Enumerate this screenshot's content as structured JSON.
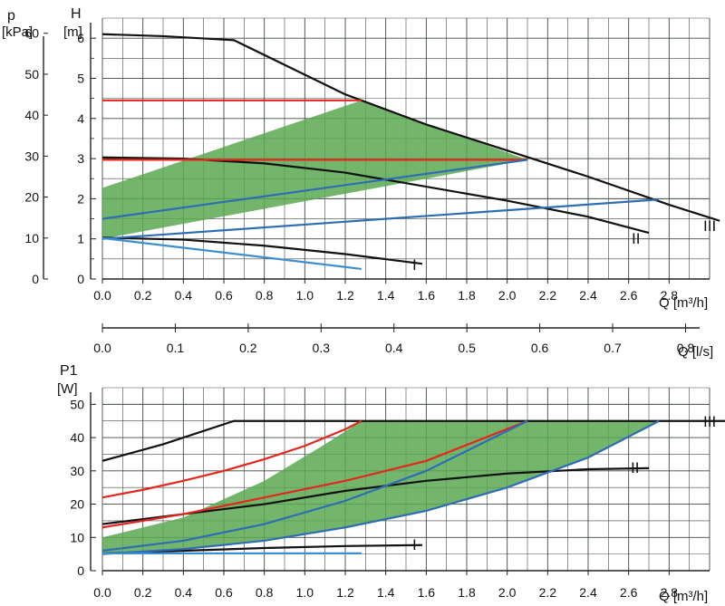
{
  "colors": {
    "grid": "#3e4a3e",
    "black": "#111111",
    "red": "#e5261e",
    "blue": "#2e6db5",
    "lightblue": "#3b8ed0",
    "green": "#5aa850"
  },
  "chart_data": [
    {
      "type": "line",
      "xlabel": "Q [m³/h]",
      "ylabel_left": "H\n[m]",
      "ylabel_outer": "p\n[kPa]",
      "x_ticks": [
        "0.0",
        "0.2",
        "0.4",
        "0.6",
        "0.8",
        "1.0",
        "1.2",
        "1.4",
        "1.6",
        "1.8",
        "2.0",
        "2.2",
        "2.4",
        "2.6",
        "2.8"
      ],
      "xlim": [
        0,
        3.0
      ],
      "ylim": [
        0,
        6.5
      ],
      "y_ticks": [
        "0",
        "1",
        "2",
        "3",
        "4",
        "5",
        "6"
      ],
      "y2_ticks": [
        "0",
        "10",
        "20",
        "30",
        "40",
        "50",
        "60"
      ],
      "ylim2_kpa": [
        0,
        63.7
      ],
      "series": [
        {
          "name": "I",
          "color": "black",
          "x": [
            0,
            0.4,
            0.8,
            1.2,
            1.58
          ],
          "y": [
            1.03,
            0.98,
            0.83,
            0.62,
            0.38
          ]
        },
        {
          "name": "II",
          "color": "black",
          "x": [
            0,
            0.4,
            0.8,
            1.2,
            1.6,
            2.0,
            2.4,
            2.7
          ],
          "y": [
            3.03,
            3.0,
            2.88,
            2.65,
            2.3,
            1.95,
            1.55,
            1.15
          ]
        },
        {
          "name": "III",
          "color": "black",
          "x": [
            0,
            0.3,
            0.65,
            1.2,
            1.6,
            2.0,
            2.4,
            2.8,
            3.05
          ],
          "y": [
            6.1,
            6.05,
            5.95,
            4.6,
            3.85,
            3.2,
            2.55,
            1.85,
            1.45
          ]
        },
        {
          "name": "",
          "color": "red",
          "x": [
            0,
            1.28
          ],
          "y": [
            4.45,
            4.45
          ]
        },
        {
          "name": "",
          "color": "red",
          "x": [
            0,
            2.1
          ],
          "y": [
            2.97,
            2.97
          ]
        },
        {
          "name": "",
          "color": "blue",
          "x": [
            0,
            2.1
          ],
          "y": [
            1.5,
            2.97
          ]
        },
        {
          "name": "",
          "color": "blue",
          "x": [
            0,
            2.75
          ],
          "y": [
            1.0,
            1.98
          ]
        },
        {
          "name": "",
          "color": "lightblue",
          "x": [
            0,
            1.28
          ],
          "y": [
            1.02,
            0.25
          ]
        }
      ],
      "band": {
        "color": "green",
        "x": [
          0,
          1.28,
          2.1,
          2.75,
          2.1,
          0
        ],
        "y": [
          2.27,
          4.45,
          2.97,
          1.98,
          2.97,
          1.0
        ]
      }
    },
    {
      "type": "line",
      "xlabel": "Q [l/s]",
      "x_ticks": [
        "0.0",
        "0.1",
        "0.2",
        "0.3",
        "0.4",
        "0.5",
        "0.6",
        "0.7",
        "0.8"
      ],
      "xlim": [
        0,
        0.833
      ]
    },
    {
      "type": "line",
      "xlabel": "Q [m³/h]",
      "ylabel": "P1\n[W]",
      "x_ticks": [
        "0.0",
        "0.2",
        "0.4",
        "0.6",
        "0.8",
        "1.0",
        "1.2",
        "1.4",
        "1.6",
        "1.8",
        "2.0",
        "2.2",
        "2.4",
        "2.6",
        "2.8"
      ],
      "xlim": [
        0,
        3.0
      ],
      "ylim": [
        0,
        55
      ],
      "y_ticks": [
        "0",
        "10",
        "20",
        "30",
        "40",
        "50"
      ],
      "series": [
        {
          "name": "I",
          "color": "black",
          "x": [
            0,
            0.4,
            0.8,
            1.2,
            1.58
          ],
          "y": [
            5.2,
            6.0,
            6.8,
            7.4,
            7.7
          ]
        },
        {
          "name": "II",
          "color": "black",
          "x": [
            0,
            0.4,
            0.8,
            1.2,
            1.6,
            2.0,
            2.4,
            2.7
          ],
          "y": [
            14,
            17,
            20,
            24,
            27,
            29.2,
            30.5,
            30.8
          ]
        },
        {
          "name": "III",
          "color": "black",
          "x": [
            0,
            0.3,
            0.65,
            3.1
          ],
          "y": [
            33,
            38,
            45,
            45
          ]
        },
        {
          "name": "",
          "color": "red",
          "x": [
            0,
            0.2,
            0.4,
            0.6,
            0.8,
            1.0,
            1.2,
            1.28
          ],
          "y": [
            22,
            24.3,
            27,
            30,
            33.5,
            37.5,
            42.5,
            45
          ]
        },
        {
          "name": "",
          "color": "red",
          "x": [
            0,
            0.4,
            0.8,
            1.2,
            1.6,
            2.1
          ],
          "y": [
            13,
            17,
            22,
            27,
            33,
            45
          ]
        },
        {
          "name": "",
          "color": "blue",
          "x": [
            0,
            0.4,
            0.8,
            1.2,
            1.6,
            2.1
          ],
          "y": [
            6,
            9,
            14,
            21,
            30,
            45
          ]
        },
        {
          "name": "",
          "color": "blue",
          "x": [
            0,
            0.4,
            0.8,
            1.2,
            1.6,
            2.0,
            2.4,
            2.75
          ],
          "y": [
            5,
            6.5,
            9,
            13,
            18,
            25,
            34,
            45
          ]
        },
        {
          "name": "",
          "color": "lightblue",
          "x": [
            0,
            1.28
          ],
          "y": [
            5.2,
            5.2
          ]
        }
      ],
      "band": {
        "color": "green",
        "x": [
          0,
          0.4,
          0.8,
          1.1,
          1.28,
          2.75,
          2.4,
          2.0,
          1.6,
          1.2,
          0.8,
          0.4,
          0
        ],
        "y": [
          10,
          16,
          27,
          38,
          45,
          45,
          34,
          25,
          18,
          13,
          9,
          6.5,
          5
        ]
      }
    }
  ],
  "labels": {
    "p": "p",
    "p_unit": "[kPa]",
    "h": "H",
    "h_unit": "[m]",
    "q_m3h": "Q [m³/h]",
    "q_ls": "Q [l/s]",
    "p1": "P1",
    "p1_unit": "[W]",
    "curve_I": "I",
    "curve_II": "II",
    "curve_III": "III"
  }
}
